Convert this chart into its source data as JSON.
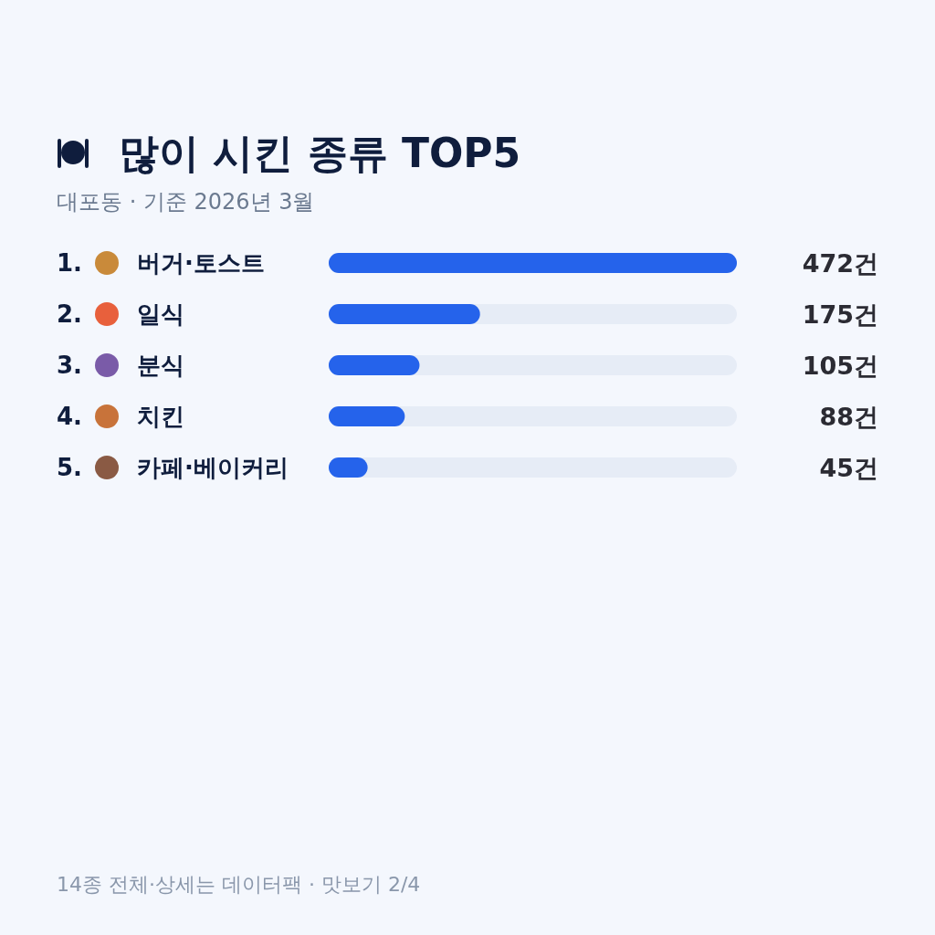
{
  "chart_data": {
    "type": "bar",
    "orientation": "horizontal",
    "title": "많이 시킨 종류 TOP5",
    "subtitle": "대포동 · 기준 2026년 3월",
    "categories": [
      "1. 버거·토스트",
      "2. 일식",
      "3. 분식",
      "4. 치킨",
      "5. 카페·베이커리"
    ],
    "values": [
      472,
      175,
      105,
      88,
      45
    ],
    "color": "#2563eb",
    "xlim": [
      0,
      472
    ],
    "value_labels": [
      "472건",
      "175건",
      "105건",
      "88건",
      "45건"
    ],
    "annotations": [
      "14종 전체·상세는 데이터팩 · 맛보기 2/4"
    ]
  }
}
